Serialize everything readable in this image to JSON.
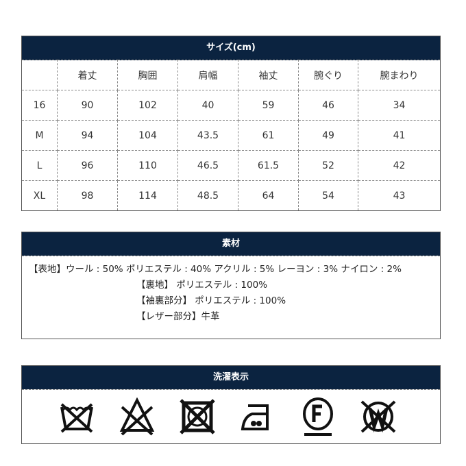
{
  "size_table": {
    "title": "サイズ(cm)",
    "columns": [
      "",
      "着丈",
      "胸囲",
      "肩幅",
      "袖丈",
      "腕ぐり",
      "腕まわり"
    ],
    "rows": [
      [
        "16",
        "90",
        "102",
        "40",
        "59",
        "46",
        "34"
      ],
      [
        "M",
        "94",
        "104",
        "43.5",
        "61",
        "49",
        "41"
      ],
      [
        "L",
        "96",
        "110",
        "46.5",
        "61.5",
        "52",
        "42"
      ],
      [
        "XL",
        "98",
        "114",
        "48.5",
        "64",
        "54",
        "43"
      ]
    ]
  },
  "material": {
    "title": "素材",
    "lines": [
      "【表地】ウール : 50%  ポリエステル : 40%  アクリル : 5%   レーヨン : 3%   ナイロン : 2%",
      "【裏地】   ポリエステル : 100%",
      "【袖裏部分】   ポリエステル : 100%",
      "【レザー部分】牛革"
    ]
  },
  "care": {
    "title": "洗濯表示",
    "icons": [
      "no-wash-icon",
      "no-bleach-icon",
      "no-tumble-dry-icon",
      "iron-medium-icon",
      "dry-clean-f-icon",
      "no-wet-clean-icon"
    ]
  },
  "colors": {
    "header": "#0b2340"
  }
}
